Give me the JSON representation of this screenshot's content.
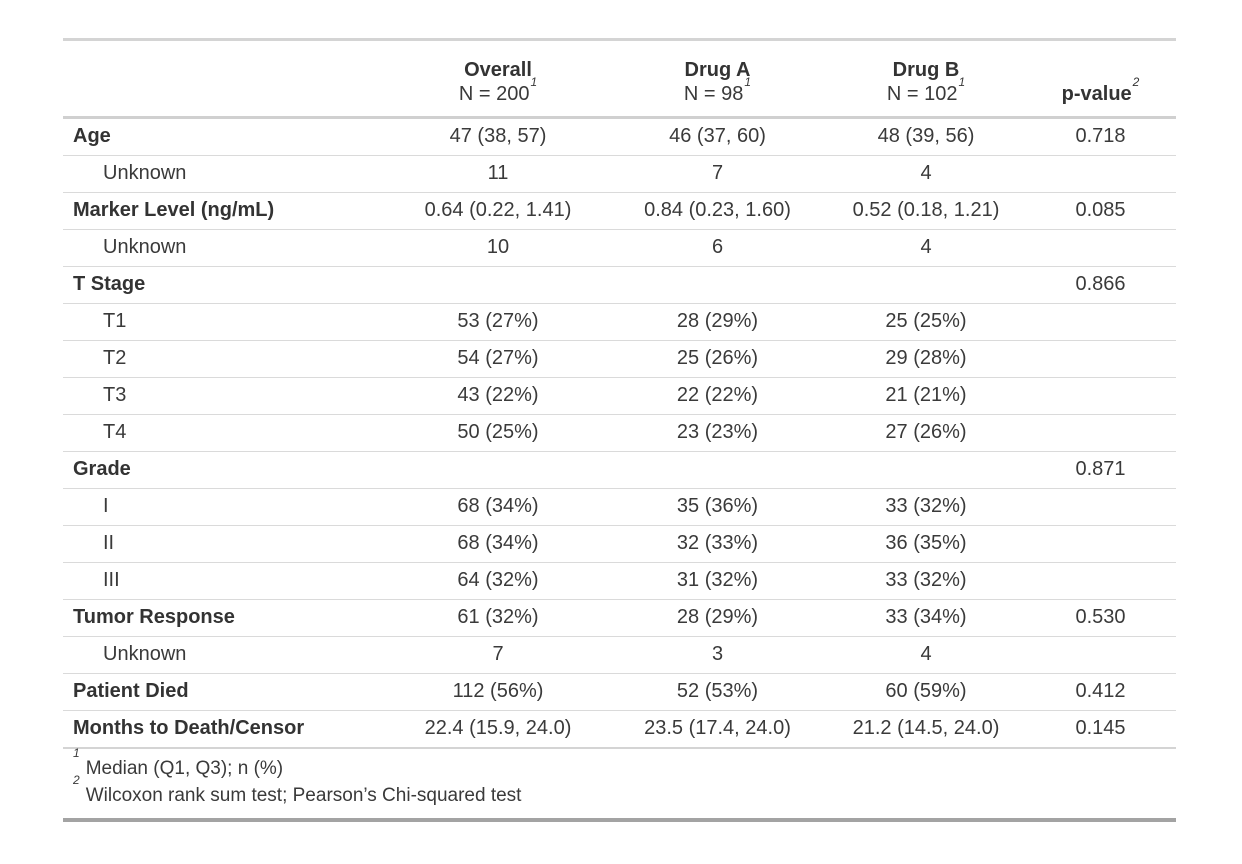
{
  "colors": {
    "text": "#3a3a3a",
    "bold_text": "#333333",
    "border_light": "#d4d4d4",
    "border_header": "#d0d0d0",
    "row_separator": "#dadada",
    "border_bottom": "#a3a3a3",
    "background": "#ffffff"
  },
  "table": {
    "columns": [
      {
        "id": "label",
        "title": "",
        "subtitle": "",
        "footnote_mark": "",
        "align": "left"
      },
      {
        "id": "overall",
        "title": "Overall",
        "subtitle": "N = 200",
        "footnote_mark": "1",
        "align": "center"
      },
      {
        "id": "drug_a",
        "title": "Drug A",
        "subtitle": "N = 98",
        "footnote_mark": "1",
        "align": "center"
      },
      {
        "id": "drug_b",
        "title": "Drug B",
        "subtitle": "N = 102",
        "footnote_mark": "1",
        "align": "center"
      },
      {
        "id": "p_value",
        "title": "p-value",
        "subtitle": "",
        "footnote_mark": "2",
        "align": "center"
      }
    ],
    "rows": [
      {
        "label": "Age",
        "variant": "variable",
        "cells": [
          "47 (38, 57)",
          "46 (37, 60)",
          "48 (39, 56)",
          "0.718"
        ]
      },
      {
        "label": "Unknown",
        "variant": "level",
        "cells": [
          "11",
          "7",
          "4",
          ""
        ]
      },
      {
        "label": "Marker Level (ng/mL)",
        "variant": "variable",
        "cells": [
          "0.64 (0.22, 1.41)",
          "0.84 (0.23, 1.60)",
          "0.52 (0.18, 1.21)",
          "0.085"
        ]
      },
      {
        "label": "Unknown",
        "variant": "level",
        "cells": [
          "10",
          "6",
          "4",
          ""
        ]
      },
      {
        "label": "T Stage",
        "variant": "variable",
        "cells": [
          "",
          "",
          "",
          "0.866"
        ]
      },
      {
        "label": "T1",
        "variant": "level",
        "cells": [
          "53 (27%)",
          "28 (29%)",
          "25 (25%)",
          ""
        ]
      },
      {
        "label": "T2",
        "variant": "level",
        "cells": [
          "54 (27%)",
          "25 (26%)",
          "29 (28%)",
          ""
        ]
      },
      {
        "label": "T3",
        "variant": "level",
        "cells": [
          "43 (22%)",
          "22 (22%)",
          "21 (21%)",
          ""
        ]
      },
      {
        "label": "T4",
        "variant": "level",
        "cells": [
          "50 (25%)",
          "23 (23%)",
          "27 (26%)",
          ""
        ]
      },
      {
        "label": "Grade",
        "variant": "variable",
        "cells": [
          "",
          "",
          "",
          "0.871"
        ]
      },
      {
        "label": "I",
        "variant": "level",
        "cells": [
          "68 (34%)",
          "35 (36%)",
          "33 (32%)",
          ""
        ]
      },
      {
        "label": "II",
        "variant": "level",
        "cells": [
          "68 (34%)",
          "32 (33%)",
          "36 (35%)",
          ""
        ]
      },
      {
        "label": "III",
        "variant": "level",
        "cells": [
          "64 (32%)",
          "31 (32%)",
          "33 (32%)",
          ""
        ]
      },
      {
        "label": "Tumor Response",
        "variant": "variable",
        "cells": [
          "61 (32%)",
          "28 (29%)",
          "33 (34%)",
          "0.530"
        ]
      },
      {
        "label": "Unknown",
        "variant": "level",
        "cells": [
          "7",
          "3",
          "4",
          ""
        ]
      },
      {
        "label": "Patient Died",
        "variant": "variable",
        "cells": [
          "112 (56%)",
          "52 (53%)",
          "60 (59%)",
          "0.412"
        ]
      },
      {
        "label": "Months to Death/Censor",
        "variant": "variable",
        "cells": [
          "22.4 (15.9, 24.0)",
          "23.5 (17.4, 24.0)",
          "21.2 (14.5, 24.0)",
          "0.145"
        ]
      }
    ],
    "footnotes": [
      {
        "mark": "1",
        "text": "Median (Q1, Q3); n (%)"
      },
      {
        "mark": "2",
        "text": "Wilcoxon rank sum test; Pearson’s Chi-squared test"
      }
    ]
  },
  "chart_data": {
    "type": "table",
    "columns": [
      "",
      "Overall N = 200",
      "Drug A N = 98",
      "Drug B N = 102",
      "p-value"
    ],
    "rows": [
      [
        "Age",
        "47 (38, 57)",
        "46 (37, 60)",
        "48 (39, 56)",
        "0.718"
      ],
      [
        "Unknown",
        "11",
        "7",
        "4",
        ""
      ],
      [
        "Marker Level (ng/mL)",
        "0.64 (0.22, 1.41)",
        "0.84 (0.23, 1.60)",
        "0.52 (0.18, 1.21)",
        "0.085"
      ],
      [
        "Unknown",
        "10",
        "6",
        "4",
        ""
      ],
      [
        "T Stage",
        "",
        "",
        "",
        "0.866"
      ],
      [
        "T1",
        "53 (27%)",
        "28 (29%)",
        "25 (25%)",
        ""
      ],
      [
        "T2",
        "54 (27%)",
        "25 (26%)",
        "29 (28%)",
        ""
      ],
      [
        "T3",
        "43 (22%)",
        "22 (22%)",
        "21 (21%)",
        ""
      ],
      [
        "T4",
        "50 (25%)",
        "23 (23%)",
        "27 (26%)",
        ""
      ],
      [
        "Grade",
        "",
        "",
        "",
        "0.871"
      ],
      [
        "I",
        "68 (34%)",
        "35 (36%)",
        "33 (32%)",
        ""
      ],
      [
        "II",
        "68 (34%)",
        "32 (33%)",
        "36 (35%)",
        ""
      ],
      [
        "III",
        "64 (32%)",
        "31 (32%)",
        "33 (32%)",
        ""
      ],
      [
        "Tumor Response",
        "61 (32%)",
        "28 (29%)",
        "33 (34%)",
        "0.530"
      ],
      [
        "Unknown",
        "7",
        "3",
        "4",
        ""
      ],
      [
        "Patient Died",
        "112 (56%)",
        "52 (53%)",
        "60 (59%)",
        "0.412"
      ],
      [
        "Months to Death/Censor",
        "22.4 (15.9, 24.0)",
        "23.5 (17.4, 24.0)",
        "21.2 (14.5, 24.0)",
        "0.145"
      ]
    ],
    "footnotes": [
      "Median (Q1, Q3); n (%)",
      "Wilcoxon rank sum test; Pearson’s Chi-squared test"
    ]
  }
}
